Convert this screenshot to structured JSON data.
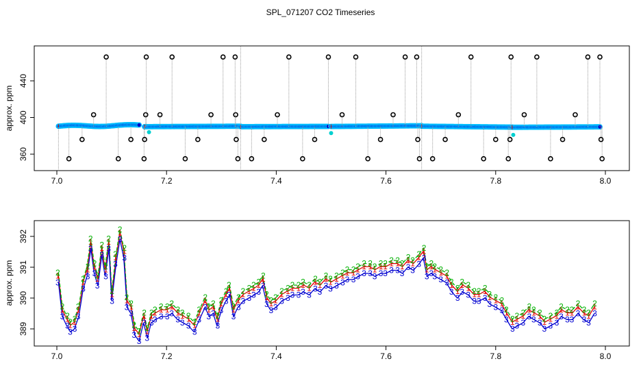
{
  "title": "SPL_071207  CO2 Timeseries",
  "colors": {
    "vline": "#9a9a9a",
    "outlier": "#000000",
    "main": "#0000cc",
    "main_edge": "#00c0ff",
    "accent": "#d00000",
    "cyan": "#00d0d0",
    "s1": "#e00000",
    "s2": "#00b000",
    "s3": "#0000d0",
    "s_mix": "#9020a0"
  },
  "chart_data": [
    {
      "type": "scatter",
      "panel": "top",
      "ylabel": "approx. ppm",
      "xlim": [
        7.0,
        8.0
      ],
      "ylim": [
        348,
        473
      ],
      "x_ticks": [
        "7.0",
        "7.2",
        "7.4",
        "7.6",
        "7.8",
        "8.0"
      ],
      "y_ticks": [
        "360",
        "400",
        "440"
      ],
      "segments": [
        {
          "x": [
            7.003,
            7.15
          ],
          "y": [
            390.5,
            391.5
          ]
        },
        {
          "x": [
            7.16,
            7.335
          ],
          "y": [
            390.0,
            390.5
          ]
        },
        {
          "x": [
            7.335,
            7.495
          ],
          "y": [
            390.0,
            390.3
          ]
        },
        {
          "x": [
            7.5,
            7.665
          ],
          "y": [
            390.2,
            391.0
          ]
        },
        {
          "x": [
            7.665,
            7.83
          ],
          "y": [
            390.5,
            389.5
          ]
        },
        {
          "x": [
            7.83,
            7.99
          ],
          "y": [
            389.3,
            389.8
          ]
        }
      ],
      "outliers": [
        {
          "x": 7.022,
          "y": 355
        },
        {
          "x": 7.046,
          "y": 376
        },
        {
          "x": 7.067,
          "y": 403
        },
        {
          "x": 7.09,
          "y": 466
        },
        {
          "x": 7.112,
          "y": 355
        },
        {
          "x": 7.135,
          "y": 376
        },
        {
          "x": 7.159,
          "y": 355
        },
        {
          "x": 7.16,
          "y": 376
        },
        {
          "x": 7.162,
          "y": 403
        },
        {
          "x": 7.163,
          "y": 466
        },
        {
          "x": 7.188,
          "y": 403
        },
        {
          "x": 7.21,
          "y": 466
        },
        {
          "x": 7.234,
          "y": 355
        },
        {
          "x": 7.257,
          "y": 376
        },
        {
          "x": 7.281,
          "y": 403
        },
        {
          "x": 7.303,
          "y": 466
        },
        {
          "x": 7.325,
          "y": 466
        },
        {
          "x": 7.326,
          "y": 403
        },
        {
          "x": 7.327,
          "y": 376
        },
        {
          "x": 7.33,
          "y": 355
        },
        {
          "x": 7.355,
          "y": 355
        },
        {
          "x": 7.378,
          "y": 376
        },
        {
          "x": 7.402,
          "y": 403
        },
        {
          "x": 7.423,
          "y": 466
        },
        {
          "x": 7.448,
          "y": 355
        },
        {
          "x": 7.47,
          "y": 376
        },
        {
          "x": 7.495,
          "y": 466
        },
        {
          "x": 7.52,
          "y": 403
        },
        {
          "x": 7.545,
          "y": 466
        },
        {
          "x": 7.567,
          "y": 355
        },
        {
          "x": 7.59,
          "y": 376
        },
        {
          "x": 7.613,
          "y": 403
        },
        {
          "x": 7.635,
          "y": 466
        },
        {
          "x": 7.656,
          "y": 466
        },
        {
          "x": 7.658,
          "y": 376
        },
        {
          "x": 7.661,
          "y": 355
        },
        {
          "x": 7.685,
          "y": 355
        },
        {
          "x": 7.708,
          "y": 376
        },
        {
          "x": 7.732,
          "y": 403
        },
        {
          "x": 7.755,
          "y": 466
        },
        {
          "x": 7.778,
          "y": 355
        },
        {
          "x": 7.8,
          "y": 376
        },
        {
          "x": 7.823,
          "y": 355
        },
        {
          "x": 7.826,
          "y": 376
        },
        {
          "x": 7.828,
          "y": 466
        },
        {
          "x": 7.852,
          "y": 403
        },
        {
          "x": 7.875,
          "y": 466
        },
        {
          "x": 7.9,
          "y": 355
        },
        {
          "x": 7.922,
          "y": 376
        },
        {
          "x": 7.945,
          "y": 403
        },
        {
          "x": 7.968,
          "y": 466
        },
        {
          "x": 7.99,
          "y": 466
        },
        {
          "x": 7.992,
          "y": 376
        },
        {
          "x": 7.994,
          "y": 355
        }
      ],
      "cyan_points": [
        {
          "x": 7.168,
          "y": 384
        },
        {
          "x": 7.5,
          "y": 383
        },
        {
          "x": 7.832,
          "y": 381
        }
      ]
    },
    {
      "type": "line",
      "panel": "bottom",
      "ylabel": "approx. ppm",
      "xlim": [
        7.0,
        8.0
      ],
      "ylim": [
        388.5,
        392.5
      ],
      "x_ticks": [
        "7.0",
        "7.2",
        "7.4",
        "7.6",
        "7.8",
        "8.0"
      ],
      "y_ticks": [
        "389",
        "390",
        "391",
        "392"
      ],
      "series": [
        {
          "name": "1",
          "offset": 0.12
        },
        {
          "name": "2",
          "offset": 0.22
        },
        {
          "name": "3",
          "offset": -0.1
        }
      ],
      "x": [
        7.003,
        7.01,
        7.018,
        7.025,
        7.032,
        7.04,
        7.048,
        7.055,
        7.062,
        7.068,
        7.075,
        7.082,
        7.088,
        7.095,
        7.1,
        7.108,
        7.115,
        7.122,
        7.128,
        7.135,
        7.142,
        7.15,
        7.158,
        7.165,
        7.172,
        7.18,
        7.19,
        7.2,
        7.21,
        7.22,
        7.23,
        7.24,
        7.25,
        7.26,
        7.27,
        7.278,
        7.285,
        7.292,
        7.3,
        7.308,
        7.315,
        7.322,
        7.33,
        7.34,
        7.35,
        7.36,
        7.368,
        7.375,
        7.383,
        7.39,
        7.4,
        7.41,
        7.42,
        7.43,
        7.44,
        7.45,
        7.46,
        7.47,
        7.48,
        7.49,
        7.5,
        7.51,
        7.52,
        7.53,
        7.54,
        7.55,
        7.56,
        7.57,
        7.58,
        7.59,
        7.6,
        7.61,
        7.62,
        7.63,
        7.64,
        7.65,
        7.66,
        7.668,
        7.675,
        7.682,
        7.69,
        7.7,
        7.71,
        7.72,
        7.73,
        7.74,
        7.75,
        7.76,
        7.77,
        7.78,
        7.79,
        7.8,
        7.81,
        7.82,
        7.83,
        7.84,
        7.85,
        7.86,
        7.87,
        7.88,
        7.89,
        7.9,
        7.91,
        7.92,
        7.93,
        7.94,
        7.95,
        7.96,
        7.97,
        7.98
      ],
      "y": [
        390.6,
        389.5,
        389.2,
        389.0,
        389.1,
        389.5,
        390.4,
        390.8,
        391.7,
        390.9,
        390.5,
        391.5,
        390.8,
        391.7,
        390.0,
        391.2,
        392.0,
        391.4,
        389.8,
        389.6,
        388.9,
        388.7,
        389.3,
        388.8,
        389.3,
        389.4,
        389.5,
        389.5,
        389.6,
        389.4,
        389.3,
        389.2,
        389.0,
        389.4,
        389.8,
        389.5,
        389.6,
        389.2,
        389.7,
        390.0,
        390.2,
        389.5,
        389.8,
        390.0,
        390.1,
        390.2,
        390.3,
        390.5,
        389.9,
        389.7,
        389.8,
        390.0,
        390.1,
        390.2,
        390.2,
        390.3,
        390.2,
        390.4,
        390.3,
        390.5,
        390.4,
        390.5,
        390.6,
        390.7,
        390.7,
        390.8,
        390.9,
        390.9,
        390.8,
        390.9,
        390.9,
        391.0,
        391.0,
        390.9,
        391.1,
        391.0,
        391.2,
        391.4,
        390.8,
        390.9,
        390.8,
        390.7,
        390.6,
        390.3,
        390.1,
        390.3,
        390.2,
        390.0,
        390.0,
        390.1,
        389.9,
        389.8,
        389.7,
        389.4,
        389.1,
        389.2,
        389.3,
        389.5,
        389.4,
        389.3,
        389.1,
        389.2,
        389.3,
        389.5,
        389.4,
        389.4,
        389.6,
        389.4,
        389.3,
        389.6
      ]
    }
  ]
}
